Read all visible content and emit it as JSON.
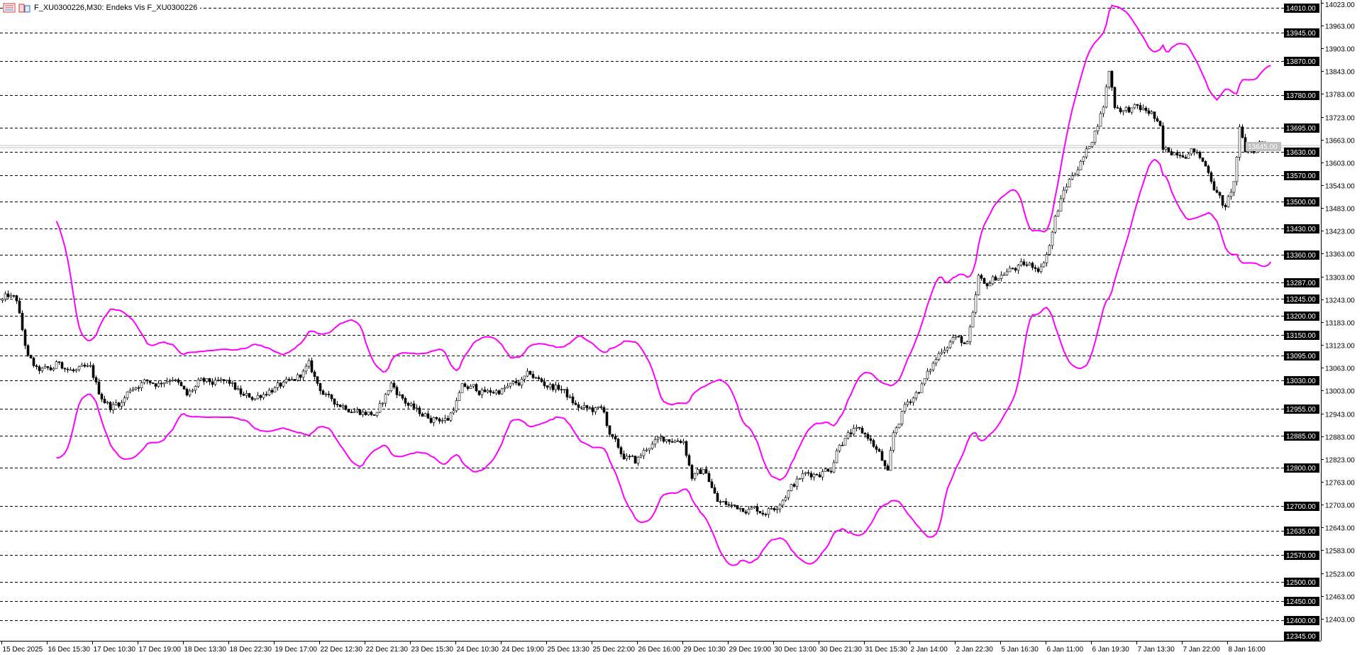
{
  "window": {
    "title": "F_XU0300226,M30: Endeks Vis F_XU0300226",
    "icons": [
      "market-watch-icon",
      "chart-properties-icon"
    ]
  },
  "chart_data": {
    "type": "candlestick",
    "symbol": "F_XU0300226",
    "timeframe": "M30",
    "ylim": [
      12345,
      14030
    ],
    "grid": false,
    "colors": {
      "background": "#ffffff",
      "candle_outline": "#000000",
      "bull_body": "#ffffff",
      "bear_body": "#000000",
      "bands": "#ff00ff",
      "level_lines": "#000000",
      "level_label_bg": "#000000",
      "level_label_text": "#ffffff",
      "current_price": "#c0c0c0"
    },
    "indicator": {
      "type": "bollinger-bands",
      "color": "#ff00ff"
    },
    "price_ticks": [
      14023,
      13963,
      13903,
      13843,
      13783,
      13723,
      13663,
      13603,
      13543,
      13483,
      13423,
      13363,
      13303,
      13243,
      13183,
      13123,
      13063,
      13003,
      12943,
      12883,
      12823,
      12763,
      12703,
      12643,
      12583,
      12523,
      12463,
      12403
    ],
    "price_tick_labels": [
      "14023.00",
      "13963.00",
      "13903.00",
      "13843.00",
      "13783.00",
      "13723.00",
      "13663.00",
      "13603.00",
      "13543.00",
      "13483.00",
      "13423.00",
      "13363.00",
      "13303.00",
      "13243.00",
      "13183.00",
      "13123.00",
      "13063.00",
      "13003.00",
      "12943.00",
      "12883.00",
      "12823.00",
      "12763.00",
      "12703.00",
      "12643.00",
      "12583.00",
      "12523.00",
      "12463.00",
      "12403.00"
    ],
    "horizontal_levels": [
      14010,
      13945,
      13870,
      13780,
      13695,
      13630,
      13570,
      13500,
      13430,
      13360,
      13287,
      13245,
      13200,
      13150,
      13095,
      13030,
      12955,
      12885,
      12800,
      12700,
      12635,
      12570,
      12500,
      12450,
      12400,
      12345
    ],
    "horizontal_level_labels": [
      "14010.00",
      "13945.00",
      "13870.00",
      "13780.00",
      "13695.00",
      "13630.00",
      "13570.00",
      "13500.00",
      "13430.00",
      "13360.00",
      "13287.00",
      "13245.00",
      "13200.00",
      "13150.00",
      "13095.00",
      "13030.00",
      "12955.00",
      "12885.00",
      "12800.00",
      "12700.00",
      "12635.00",
      "12570.00",
      "12500.00",
      "12450.00",
      "12400.00",
      "12345.00"
    ],
    "current_price": 13645,
    "current_price_label": "13645.00",
    "time_labels": [
      "15 Dec 2025",
      "16 Dec 15:30",
      "17 Dec 10:30",
      "17 Dec 19:00",
      "18 Dec 13:30",
      "18 Dec 22:30",
      "19 Dec 17:00",
      "22 Dec 12:30",
      "22 Dec 21:30",
      "23 Dec 15:30",
      "24 Dec 10:30",
      "24 Dec 19:00",
      "25 Dec 13:30",
      "25 Dec 22:00",
      "26 Dec 16:00",
      "29 Dec 10:30",
      "29 Dec 19:00",
      "30 Dec 13:00",
      "30 Dec 21:30",
      "31 Dec 15:30",
      "2 Jan 14:00",
      "2 Jan 22:30",
      "5 Jan 16:30",
      "6 Jan 11:00",
      "6 Jan 19:30",
      "7 Jan 13:30",
      "7 Jan 22:00",
      "8 Jan 16:00"
    ],
    "bars_per_time_label": 16,
    "close_path_by_bar": [
      [
        0,
        13240
      ],
      [
        2,
        13249
      ],
      [
        5,
        13238
      ],
      [
        7,
        13158
      ],
      [
        9,
        13089
      ],
      [
        12,
        13054
      ],
      [
        17,
        13054
      ],
      [
        20,
        13077
      ],
      [
        25,
        13054
      ],
      [
        31,
        13054
      ],
      [
        34,
        12997
      ],
      [
        38,
        12962
      ],
      [
        42,
        12974
      ],
      [
        45,
        13008
      ],
      [
        49,
        13027
      ],
      [
        55,
        13024
      ],
      [
        60,
        13043
      ],
      [
        65,
        12985
      ],
      [
        69,
        13020
      ],
      [
        75,
        13020
      ],
      [
        80,
        13020
      ],
      [
        85,
        12985
      ],
      [
        89,
        12985
      ],
      [
        94,
        13008
      ],
      [
        102,
        13020
      ],
      [
        108,
        13066
      ],
      [
        111,
        13020
      ],
      [
        115,
        12978
      ],
      [
        122,
        12962
      ],
      [
        126,
        12951
      ],
      [
        132,
        12939
      ],
      [
        137,
        13020
      ],
      [
        142,
        12974
      ],
      [
        146,
        12946
      ],
      [
        151,
        12933
      ],
      [
        157,
        12928
      ],
      [
        162,
        13008
      ],
      [
        166,
        13008
      ],
      [
        171,
        12997
      ],
      [
        177,
        13008
      ],
      [
        182,
        13020
      ],
      [
        186,
        13043
      ],
      [
        191,
        13020
      ],
      [
        197,
        13008
      ],
      [
        202,
        12962
      ],
      [
        206,
        12951
      ],
      [
        212,
        12951
      ],
      [
        214,
        12882
      ],
      [
        218,
        12836
      ],
      [
        223,
        12813
      ],
      [
        228,
        12859
      ],
      [
        234,
        12877
      ],
      [
        240,
        12875
      ],
      [
        243,
        12779
      ],
      [
        248,
        12790
      ],
      [
        252,
        12710
      ],
      [
        257,
        12698
      ],
      [
        262,
        12698
      ],
      [
        268,
        12687
      ],
      [
        272,
        12698
      ],
      [
        277,
        12744
      ],
      [
        282,
        12779
      ],
      [
        288,
        12790
      ],
      [
        292,
        12802
      ],
      [
        295,
        12871
      ],
      [
        300,
        12894
      ],
      [
        305,
        12882
      ],
      [
        309,
        12836
      ],
      [
        312,
        12779
      ],
      [
        314,
        12882
      ],
      [
        318,
        12962
      ],
      [
        323,
        13008
      ],
      [
        326,
        13043
      ],
      [
        331,
        13112
      ],
      [
        335,
        13146
      ],
      [
        340,
        13123
      ],
      [
        342,
        13192
      ],
      [
        344,
        13295
      ],
      [
        346,
        13272
      ],
      [
        349,
        13295
      ],
      [
        354,
        13318
      ],
      [
        360,
        13330
      ],
      [
        366,
        13330
      ],
      [
        369,
        13387
      ],
      [
        371,
        13456
      ],
      [
        374,
        13525
      ],
      [
        377,
        13571
      ],
      [
        382,
        13628
      ],
      [
        385,
        13686
      ],
      [
        388,
        13754
      ],
      [
        390,
        13846
      ],
      [
        392,
        13754
      ],
      [
        395,
        13743
      ],
      [
        400,
        13743
      ],
      [
        405,
        13732
      ],
      [
        408,
        13686
      ],
      [
        409,
        13628
      ],
      [
        414,
        13635
      ],
      [
        420,
        13635
      ],
      [
        425,
        13582
      ],
      [
        428,
        13525
      ],
      [
        431,
        13479
      ],
      [
        434,
        13548
      ],
      [
        436,
        13686
      ],
      [
        438,
        13628
      ],
      [
        442,
        13640
      ],
      [
        443,
        13656
      ],
      [
        447,
        13649
      ]
    ]
  }
}
